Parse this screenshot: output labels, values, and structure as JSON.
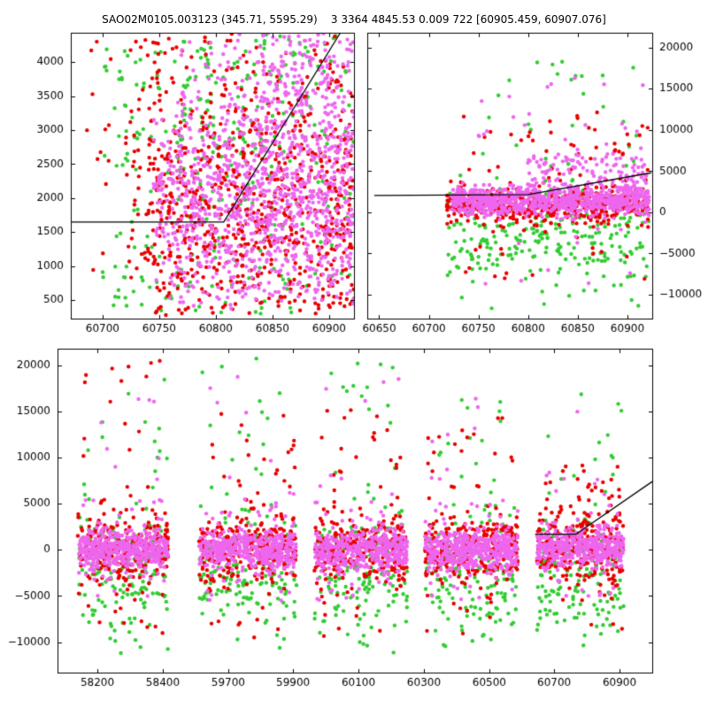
{
  "title": "SAO02M0105.003123 (345.71, 5595.29)    3 3364 4845.53 0.009 722 [60905.459, 60907.076]",
  "colors": {
    "red": "#e80000",
    "green": "#33cc33",
    "magenta": "#ee66ee",
    "line": "#000000",
    "background": "#ffffff",
    "text": "#000000"
  },
  "chart_data": [
    {
      "id": "panel-top-left",
      "type": "scatter",
      "xlim": [
        60672,
        60922
      ],
      "ylim": [
        230,
        4430
      ],
      "y_side": "left",
      "seed": 11,
      "x_ticks": [
        {
          "v": 60700,
          "label": "60700"
        },
        {
          "v": 60750,
          "label": "60750"
        },
        {
          "v": 60800,
          "label": "60800"
        },
        {
          "v": 60850,
          "label": "60850"
        },
        {
          "v": 60900,
          "label": "60900"
        }
      ],
      "y_ticks": [
        {
          "v": 500,
          "label": "500"
        },
        {
          "v": 1000,
          "label": "1000"
        },
        {
          "v": 1500,
          "label": "1500"
        },
        {
          "v": 2000,
          "label": "2000"
        },
        {
          "v": 2500,
          "label": "2500"
        },
        {
          "v": 3000,
          "label": "3000"
        },
        {
          "v": 3500,
          "label": "3500"
        },
        {
          "v": 4000,
          "label": "4000"
        }
      ],
      "line": [
        [
          60672,
          1650
        ],
        [
          60807,
          1650
        ],
        [
          60910,
          4430
        ]
      ],
      "clusters": [
        {
          "color": "green",
          "n": 260,
          "x": [
            60700,
            60922
          ],
          "y": {
            "dist": "uniform",
            "min": 300,
            "max": 4420
          }
        },
        {
          "color": "green",
          "n": 70,
          "x": [
            60770,
            60922
          ],
          "y": {
            "dist": "uniform",
            "min": 2600,
            "max": 4420
          }
        },
        {
          "color": "red",
          "n": 30,
          "x": [
            60686,
            60748
          ],
          "y": {
            "dist": "uniform",
            "min": 400,
            "max": 4300
          }
        },
        {
          "color": "red",
          "n": 520,
          "x": [
            60740,
            60922
          ],
          "y": {
            "dist": "normal",
            "mu": 1800,
            "sigma": 950,
            "min": 280,
            "max": 4430
          }
        },
        {
          "color": "red",
          "n": 280,
          "x": [
            60720,
            60922
          ],
          "y": {
            "dist": "uniform",
            "min": 300,
            "max": 4430
          }
        },
        {
          "color": "magenta",
          "n": 750,
          "x": [
            60745,
            60922
          ],
          "y": {
            "dist": "normal",
            "mu": 1850,
            "sigma": 700,
            "min": 300,
            "max": 4430
          }
        },
        {
          "color": "magenta",
          "n": 380,
          "x": [
            60765,
            60922
          ],
          "y": {
            "dist": "uniform",
            "min": 500,
            "max": 4430
          }
        },
        {
          "color": "magenta",
          "n": 160,
          "x": [
            60830,
            60922
          ],
          "y": {
            "dist": "uniform",
            "min": 2600,
            "max": 4430
          }
        }
      ]
    },
    {
      "id": "panel-top-right",
      "type": "scatter",
      "xlim": [
        60638,
        60925
      ],
      "ylim": [
        -12900,
        21800
      ],
      "y_side": "right",
      "seed": 22,
      "x_ticks": [
        {
          "v": 60650,
          "label": "60650"
        },
        {
          "v": 60700,
          "label": "60700"
        },
        {
          "v": 60750,
          "label": "60750"
        },
        {
          "v": 60800,
          "label": "60800"
        },
        {
          "v": 60850,
          "label": "60850"
        },
        {
          "v": 60900,
          "label": "60900"
        }
      ],
      "y_ticks": [
        {
          "v": -10000,
          "label": "−10000"
        },
        {
          "v": -5000,
          "label": "−5000"
        },
        {
          "v": 0,
          "label": "0"
        },
        {
          "v": 5000,
          "label": "5000"
        },
        {
          "v": 10000,
          "label": "10000"
        },
        {
          "v": 15000,
          "label": "15000"
        },
        {
          "v": 20000,
          "label": "20000"
        }
      ],
      "line": [
        [
          60645,
          2050
        ],
        [
          60800,
          2150
        ],
        [
          60924,
          4800
        ]
      ],
      "clusters": [
        {
          "color": "green",
          "n": 240,
          "x": [
            60718,
            60922
          ],
          "y": {
            "dist": "normal",
            "mu": -2200,
            "sigma": 3200,
            "min": -11900,
            "max": 6000
          }
        },
        {
          "color": "green",
          "n": 26,
          "x": [
            60740,
            60922
          ],
          "y": {
            "dist": "uniform",
            "min": 5000,
            "max": 18800
          }
        },
        {
          "color": "green",
          "n": 30,
          "x": [
            60725,
            60922
          ],
          "y": {
            "dist": "uniform",
            "min": -11500,
            "max": -4000
          }
        },
        {
          "color": "red",
          "n": 500,
          "x": [
            60718,
            60922
          ],
          "y": {
            "dist": "normal",
            "mu": 800,
            "sigma": 1100,
            "min": -4200,
            "max": 6200
          }
        },
        {
          "color": "red",
          "n": 45,
          "x": [
            60730,
            60922
          ],
          "y": {
            "dist": "uniform",
            "min": 3500,
            "max": 12800
          }
        },
        {
          "color": "red",
          "n": 16,
          "x": [
            60730,
            60922
          ],
          "y": {
            "dist": "uniform",
            "min": -8200,
            "max": -3000
          }
        },
        {
          "color": "magenta",
          "n": 820,
          "x": [
            60722,
            60922
          ],
          "y": {
            "dist": "normal",
            "mu": 1400,
            "sigma": 850,
            "min": -1600,
            "max": 5600
          }
        },
        {
          "color": "magenta",
          "n": 130,
          "x": [
            60795,
            60920
          ],
          "y": {
            "dist": "uniform",
            "min": 2500,
            "max": 7200
          }
        },
        {
          "color": "magenta",
          "n": 22,
          "x": [
            60750,
            60922
          ],
          "y": {
            "dist": "uniform",
            "min": 7000,
            "max": 16800
          }
        },
        {
          "color": "magenta",
          "n": 10,
          "x": [
            60740,
            60910
          ],
          "y": {
            "dist": "uniform",
            "min": -9500,
            "max": -2000
          }
        }
      ]
    },
    {
      "id": "panel-bottom-full-history",
      "type": "scatter",
      "xlim": [
        0,
        1
      ],
      "ylim": [
        -13300,
        21800
      ],
      "y_side": "left",
      "seed": 33,
      "x_ticks": [
        {
          "v": 0.067,
          "label": "58200"
        },
        {
          "v": 0.177,
          "label": "58400"
        },
        {
          "v": 0.287,
          "label": "59700"
        },
        {
          "v": 0.396,
          "label": "59900"
        },
        {
          "v": 0.506,
          "label": "60100"
        },
        {
          "v": 0.616,
          "label": "60300"
        },
        {
          "v": 0.726,
          "label": "60500"
        },
        {
          "v": 0.835,
          "label": "60700"
        },
        {
          "v": 0.945,
          "label": "60900"
        }
      ],
      "y_ticks": [
        {
          "v": -10000,
          "label": "−10000"
        },
        {
          "v": -5000,
          "label": "−5000"
        },
        {
          "v": 0,
          "label": "0"
        },
        {
          "v": 5000,
          "label": "5000"
        },
        {
          "v": 10000,
          "label": "10000"
        },
        {
          "v": 15000,
          "label": "15000"
        },
        {
          "v": 20000,
          "label": "20000"
        }
      ],
      "line": [
        [
          0.803,
          1700
        ],
        [
          0.872,
          1700
        ],
        [
          1.0,
          7400
        ]
      ],
      "clusters": [
        {
          "color": "green",
          "n": 150,
          "x": [
            0.034,
            0.186
          ],
          "y": {
            "dist": "normal",
            "mu": -2800,
            "sigma": 3600,
            "min": -12900,
            "max": 6500
          }
        },
        {
          "color": "green",
          "n": 14,
          "x": [
            0.04,
            0.186
          ],
          "y": {
            "dist": "uniform",
            "min": 6000,
            "max": 19000
          }
        },
        {
          "color": "red",
          "n": 270,
          "x": [
            0.034,
            0.186
          ],
          "y": {
            "dist": "normal",
            "mu": 0,
            "sigma": 1900,
            "min": -5200,
            "max": 6200
          }
        },
        {
          "color": "red",
          "n": 20,
          "x": [
            0.04,
            0.186
          ],
          "y": {
            "dist": "uniform",
            "min": 4000,
            "max": 20500
          }
        },
        {
          "color": "red",
          "n": 10,
          "x": [
            0.034,
            0.186
          ],
          "y": {
            "dist": "uniform",
            "min": -9500,
            "max": -4200
          }
        },
        {
          "color": "magenta",
          "n": 430,
          "x": [
            0.034,
            0.186
          ],
          "y": {
            "dist": "normal",
            "mu": 0,
            "sigma": 1050,
            "min": -2900,
            "max": 3100
          }
        },
        {
          "color": "magenta",
          "n": 45,
          "x": [
            0.034,
            0.186
          ],
          "y": {
            "dist": "uniform",
            "min": -5500,
            "max": 5500
          }
        },
        {
          "color": "magenta",
          "n": 8,
          "x": [
            0.04,
            0.18
          ],
          "y": {
            "dist": "uniform",
            "min": 6000,
            "max": 17000
          }
        },
        {
          "color": "green",
          "n": 150,
          "x": [
            0.238,
            0.402
          ],
          "y": {
            "dist": "normal",
            "mu": -2800,
            "sigma": 3600,
            "min": -12900,
            "max": 6500
          }
        },
        {
          "color": "green",
          "n": 16,
          "x": [
            0.24,
            0.4
          ],
          "y": {
            "dist": "uniform",
            "min": 6000,
            "max": 20800
          }
        },
        {
          "color": "red",
          "n": 270,
          "x": [
            0.238,
            0.402
          ],
          "y": {
            "dist": "normal",
            "mu": 0,
            "sigma": 1900,
            "min": -5200,
            "max": 6200
          }
        },
        {
          "color": "red",
          "n": 22,
          "x": [
            0.24,
            0.4
          ],
          "y": {
            "dist": "uniform",
            "min": 4000,
            "max": 15500
          }
        },
        {
          "color": "red",
          "n": 10,
          "x": [
            0.238,
            0.402
          ],
          "y": {
            "dist": "uniform",
            "min": -9500,
            "max": -4200
          }
        },
        {
          "color": "magenta",
          "n": 430,
          "x": [
            0.238,
            0.402
          ],
          "y": {
            "dist": "normal",
            "mu": 0,
            "sigma": 1050,
            "min": -2900,
            "max": 3100
          }
        },
        {
          "color": "magenta",
          "n": 45,
          "x": [
            0.238,
            0.402
          ],
          "y": {
            "dist": "uniform",
            "min": -5500,
            "max": 5500
          }
        },
        {
          "color": "magenta",
          "n": 8,
          "x": [
            0.24,
            0.4
          ],
          "y": {
            "dist": "uniform",
            "min": 6000,
            "max": 19000
          }
        },
        {
          "color": "green",
          "n": 150,
          "x": [
            0.432,
            0.588
          ],
          "y": {
            "dist": "normal",
            "mu": -2800,
            "sigma": 3600,
            "min": -12900,
            "max": 6500
          }
        },
        {
          "color": "green",
          "n": 16,
          "x": [
            0.435,
            0.585
          ],
          "y": {
            "dist": "uniform",
            "min": 6000,
            "max": 20500
          }
        },
        {
          "color": "red",
          "n": 270,
          "x": [
            0.432,
            0.588
          ],
          "y": {
            "dist": "normal",
            "mu": 0,
            "sigma": 1900,
            "min": -5200,
            "max": 6200
          }
        },
        {
          "color": "red",
          "n": 22,
          "x": [
            0.435,
            0.585
          ],
          "y": {
            "dist": "uniform",
            "min": 4000,
            "max": 15500
          }
        },
        {
          "color": "red",
          "n": 10,
          "x": [
            0.432,
            0.588
          ],
          "y": {
            "dist": "uniform",
            "min": -9500,
            "max": -4200
          }
        },
        {
          "color": "magenta",
          "n": 430,
          "x": [
            0.432,
            0.588
          ],
          "y": {
            "dist": "normal",
            "mu": 0,
            "sigma": 1050,
            "min": -2900,
            "max": 3100
          }
        },
        {
          "color": "magenta",
          "n": 45,
          "x": [
            0.432,
            0.588
          ],
          "y": {
            "dist": "uniform",
            "min": -5500,
            "max": 5500
          }
        },
        {
          "color": "magenta",
          "n": 8,
          "x": [
            0.435,
            0.585
          ],
          "y": {
            "dist": "uniform",
            "min": 6000,
            "max": 19000
          }
        },
        {
          "color": "green",
          "n": 150,
          "x": [
            0.618,
            0.774
          ],
          "y": {
            "dist": "normal",
            "mu": -2800,
            "sigma": 3600,
            "min": -12900,
            "max": 6500
          }
        },
        {
          "color": "green",
          "n": 14,
          "x": [
            0.62,
            0.77
          ],
          "y": {
            "dist": "uniform",
            "min": 6000,
            "max": 18000
          }
        },
        {
          "color": "red",
          "n": 270,
          "x": [
            0.618,
            0.774
          ],
          "y": {
            "dist": "normal",
            "mu": 0,
            "sigma": 1900,
            "min": -5200,
            "max": 6200
          }
        },
        {
          "color": "red",
          "n": 20,
          "x": [
            0.62,
            0.77
          ],
          "y": {
            "dist": "uniform",
            "min": 4000,
            "max": 14500
          }
        },
        {
          "color": "red",
          "n": 10,
          "x": [
            0.618,
            0.774
          ],
          "y": {
            "dist": "uniform",
            "min": -9500,
            "max": -4200
          }
        },
        {
          "color": "magenta",
          "n": 430,
          "x": [
            0.618,
            0.774
          ],
          "y": {
            "dist": "normal",
            "mu": 0,
            "sigma": 1050,
            "min": -2900,
            "max": 3100
          }
        },
        {
          "color": "magenta",
          "n": 45,
          "x": [
            0.618,
            0.774
          ],
          "y": {
            "dist": "uniform",
            "min": -5500,
            "max": 5500
          }
        },
        {
          "color": "magenta",
          "n": 8,
          "x": [
            0.62,
            0.77
          ],
          "y": {
            "dist": "uniform",
            "min": 6000,
            "max": 17000
          }
        },
        {
          "color": "green",
          "n": 140,
          "x": [
            0.806,
            0.952
          ],
          "y": {
            "dist": "normal",
            "mu": -2600,
            "sigma": 3400,
            "min": -11500,
            "max": 6000
          }
        },
        {
          "color": "green",
          "n": 14,
          "x": [
            0.81,
            0.95
          ],
          "y": {
            "dist": "uniform",
            "min": 6000,
            "max": 19500
          }
        },
        {
          "color": "red",
          "n": 250,
          "x": [
            0.806,
            0.952
          ],
          "y": {
            "dist": "normal",
            "mu": 300,
            "sigma": 1900,
            "min": -5000,
            "max": 6500
          }
        },
        {
          "color": "red",
          "n": 35,
          "x": [
            0.82,
            0.95
          ],
          "y": {
            "dist": "uniform",
            "min": 3000,
            "max": 9500
          }
        },
        {
          "color": "red",
          "n": 8,
          "x": [
            0.806,
            0.952
          ],
          "y": {
            "dist": "uniform",
            "min": -9000,
            "max": -4000
          }
        },
        {
          "color": "magenta",
          "n": 420,
          "x": [
            0.806,
            0.952
          ],
          "y": {
            "dist": "normal",
            "mu": 300,
            "sigma": 1000,
            "min": -2500,
            "max": 3300
          }
        },
        {
          "color": "magenta",
          "n": 40,
          "x": [
            0.806,
            0.952
          ],
          "y": {
            "dist": "uniform",
            "min": -5000,
            "max": 5500
          }
        },
        {
          "color": "magenta",
          "n": 8,
          "x": [
            0.81,
            0.95
          ],
          "y": {
            "dist": "uniform",
            "min": 6000,
            "max": 15000
          }
        }
      ]
    }
  ]
}
